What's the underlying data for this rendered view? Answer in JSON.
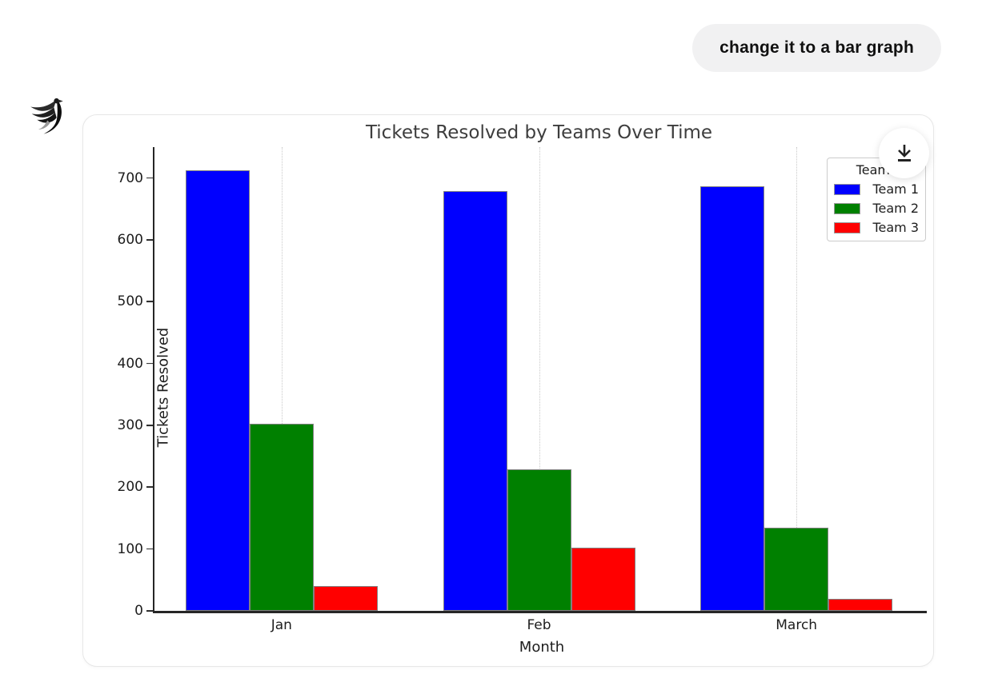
{
  "conversation": {
    "user_message": "change it to a bar graph"
  },
  "chart_data": {
    "type": "bar",
    "title": "Tickets Resolved by Teams Over Time",
    "xlabel": "Month",
    "ylabel": "Tickets Resolved",
    "categories": [
      "Jan",
      "Feb",
      "March"
    ],
    "series": [
      {
        "name": "Team 1",
        "color": "#0000ff",
        "values": [
          712,
          679,
          687
        ]
      },
      {
        "name": "Team 2",
        "color": "#008000",
        "values": [
          303,
          229,
          135
        ]
      },
      {
        "name": "Team 3",
        "color": "#ff0000",
        "values": [
          40,
          102,
          19
        ]
      }
    ],
    "legend_title": "Teams",
    "legend_position": "upper right",
    "ylim": [
      0,
      750
    ],
    "yticks": [
      0,
      100,
      200,
      300,
      400,
      500,
      600,
      700
    ],
    "grid": "vertical-dotted",
    "bar_edge_color": "#818181"
  }
}
